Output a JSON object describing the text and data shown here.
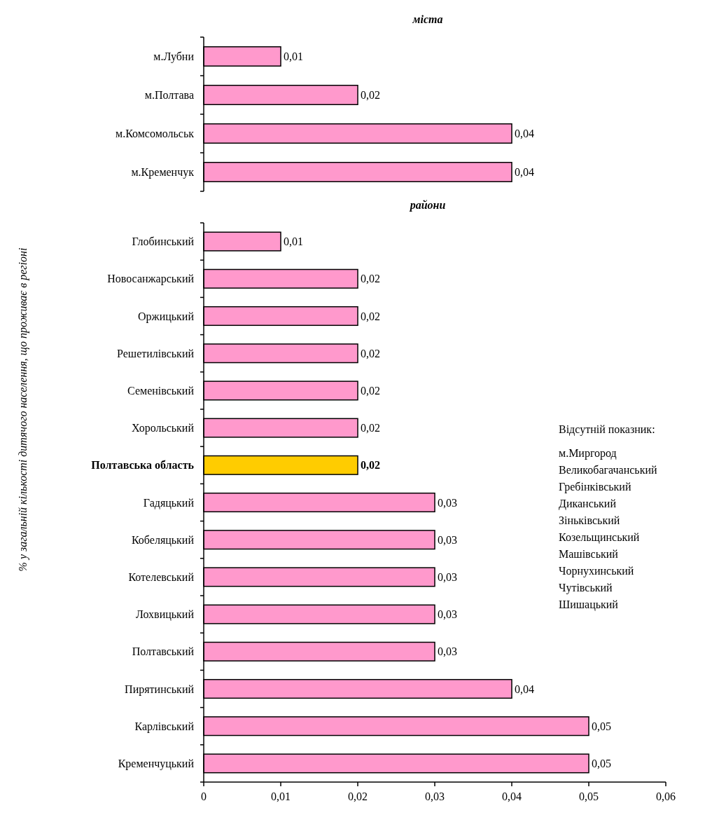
{
  "chart_data": [
    {
      "type": "bar",
      "orientation": "horizontal",
      "title": "міста",
      "categories": [
        "м.Лубни",
        "м.Полтава",
        "м.Комсомольськ",
        "м.Кременчук"
      ],
      "values": [
        0.01,
        0.02,
        0.04,
        0.04
      ],
      "value_labels": [
        "0,01",
        "0,02",
        "0,04",
        "0,04"
      ],
      "colors": [
        "#ff99cc",
        "#ff99cc",
        "#ff99cc",
        "#ff99cc"
      ],
      "xlim": [
        0,
        0.06
      ],
      "tick_labels": "y"
    },
    {
      "type": "bar",
      "orientation": "horizontal",
      "title": "райони",
      "ylabel": "% у загальній кількості дитячого населення, що проживає в регіоні",
      "categories": [
        "Глобинський",
        "Новосанжарський",
        "Оржицький",
        "Решетилівський",
        "Семенівський",
        "Хорольський",
        "Полтавська область",
        "Гадяцький",
        "Кобеляцький",
        "Котелевський",
        "Лохвицький",
        "Полтавський",
        "Пирятинський",
        "Карлівський",
        "Кременчуцький"
      ],
      "values": [
        0.01,
        0.02,
        0.02,
        0.02,
        0.02,
        0.02,
        0.02,
        0.03,
        0.03,
        0.03,
        0.03,
        0.03,
        0.04,
        0.05,
        0.05
      ],
      "value_labels": [
        "0,01",
        "0,02",
        "0,02",
        "0,02",
        "0,02",
        "0,02",
        "0,02",
        "0,03",
        "0,03",
        "0,03",
        "0,03",
        "0,03",
        "0,04",
        "0,05",
        "0,05"
      ],
      "colors": [
        "#ff99cc",
        "#ff99cc",
        "#ff99cc",
        "#ff99cc",
        "#ff99cc",
        "#ff99cc",
        "#ffcc00",
        "#ff99cc",
        "#ff99cc",
        "#ff99cc",
        "#ff99cc",
        "#ff99cc",
        "#ff99cc",
        "#ff99cc",
        "#ff99cc"
      ],
      "xlim": [
        0,
        0.06
      ],
      "xticks": [
        0,
        {
          "value": 0.01,
          "label": "0,01"
        },
        {
          "value": 0.02,
          "label": "0,02"
        },
        {
          "value": 0.03,
          "label": "0,03"
        },
        {
          "value": 0.04,
          "label": "0,04"
        },
        {
          "value": 0.05,
          "label": "0,05"
        },
        {
          "value": 0.06,
          "label": "0,06"
        }
      ],
      "annotations": [
        "Відсутній показник:",
        "м.Миргород",
        "Великобагачанський",
        "Гребінківський",
        "Диканський",
        "Зіньківський",
        "Козельщинський",
        "Машівський",
        "Чорнухинський",
        "Чутівський",
        "Шишацький"
      ]
    }
  ]
}
